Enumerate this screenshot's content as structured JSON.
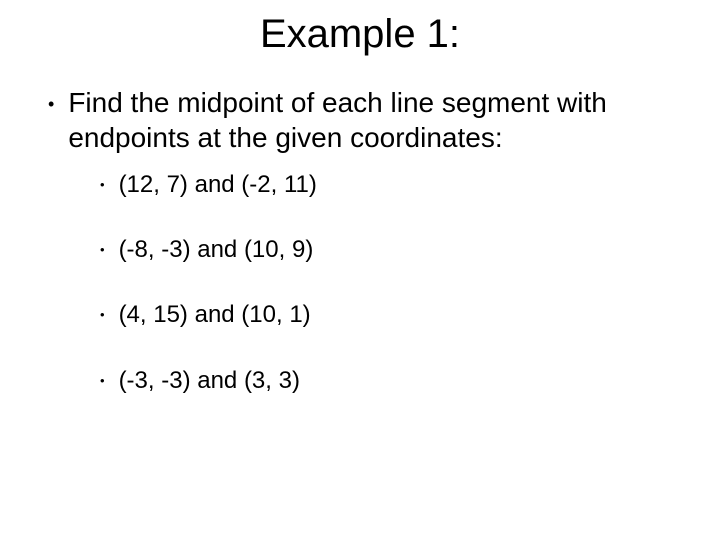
{
  "title": "Example 1:",
  "main_bullet": "Find the midpoint of each line segment with endpoints at the given coordinates:",
  "sub_bullets": [
    "(12, 7) and (-2, 11)",
    "(-8, -3) and (10, 9)",
    "(4, 15) and (10, 1)",
    "(-3, -3) and (3, 3)"
  ],
  "style": {
    "background_color": "#ffffff",
    "text_color": "#000000",
    "font_family": "Comic Sans MS",
    "title_fontsize": 40,
    "body_fontsize": 28,
    "sub_fontsize": 24,
    "bullet_char": "•"
  }
}
